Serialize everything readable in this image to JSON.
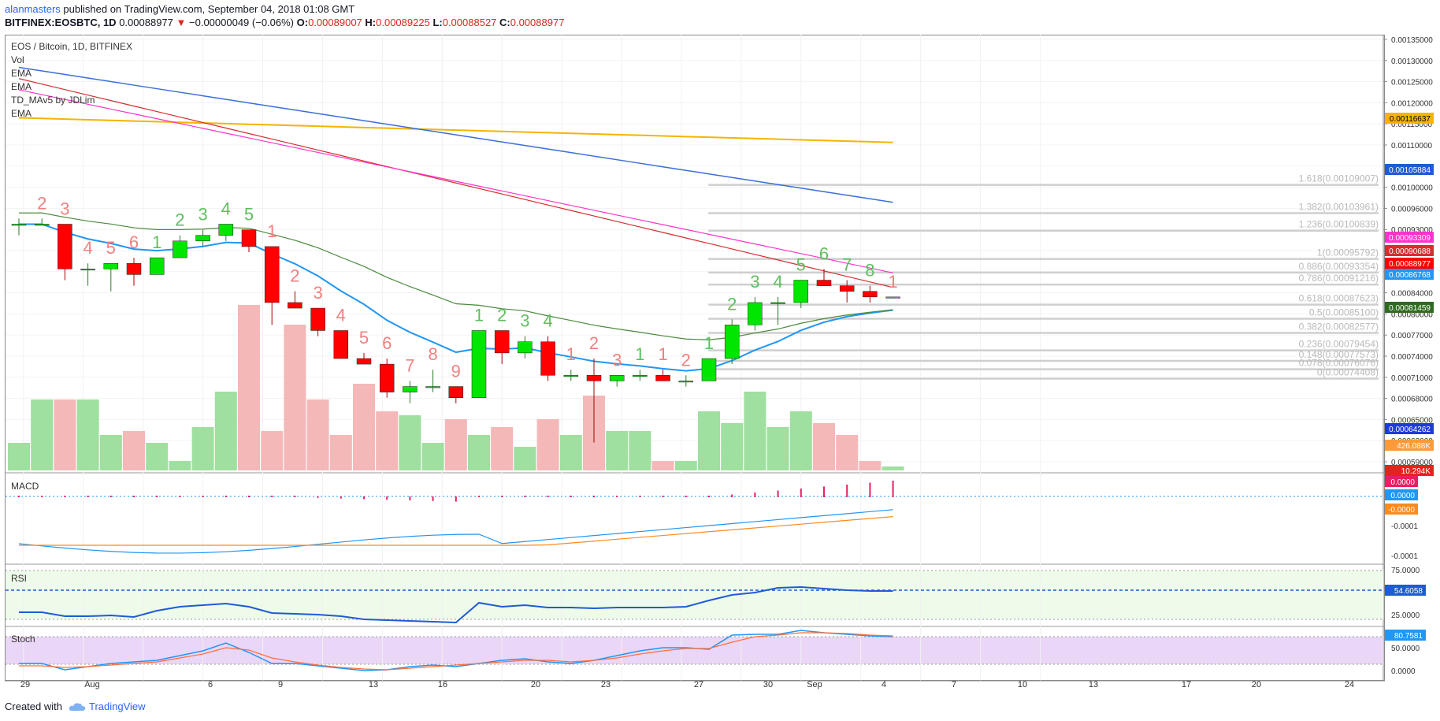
{
  "header": {
    "author": "alanmasters",
    "published": " published on TradingView.com, September 04, 2018 01:08 GMT",
    "symbol": "BITFINEX:EOSBTC, 1D",
    "last": "0.00088977",
    "change": "−0.00000049 (−0.06%)",
    "o_label": "O:",
    "o": "0.00089007",
    "h_label": "H:",
    "h": "0.00089225",
    "l_label": "L:",
    "l": "0.00088527",
    "c_label": "C:",
    "c": "0.00088977"
  },
  "legend": {
    "title": "EOS / Bitcoin, 1D, BITFINEX",
    "items": [
      "Vol",
      "EMA",
      "EMA",
      "TD_MAv5 by JDLim",
      "EMA"
    ]
  },
  "panes": {
    "macd": "MACD",
    "rsi": "RSI",
    "stoch": "Stoch"
  },
  "footer": {
    "created_with": "Created with",
    "brand": "TradingView"
  },
  "colors": {
    "up": "#00e600",
    "down": "#ff0000",
    "vol_up": "#9fdf9f",
    "vol_down": "#f4b8b8",
    "ema_blue": "#2196f3",
    "ema_red": "#d32f2f",
    "ema_magenta": "#ff33cc",
    "ema_gold": "#f5b400",
    "ema_navy": "#3b6fd8",
    "ema_green": "#4a8a3a",
    "rsi": "#1e5bd6"
  },
  "chart_data": {
    "type": "candlestick",
    "y_axis_labels": [
      "0.00135000",
      "0.00130000",
      "0.00125000",
      "0.00120000",
      "0.00115000",
      "0.00110000",
      "0.00105000",
      "0.00100000",
      "0.00096000",
      "0.00093000",
      "0.00090000",
      "0.00087000",
      "0.00084000",
      "0.00080000",
      "0.00077000",
      "0.00074000",
      "0.00071000",
      "0.00068000",
      "0.00065000",
      "0.00062000",
      "0.00059000"
    ],
    "x_axis_labels": [
      "29",
      "Aug",
      "6",
      "9",
      "13",
      "16",
      "20",
      "23",
      "27",
      "30",
      "Sep",
      "4",
      "7",
      "10",
      "13",
      "17",
      "20",
      "24"
    ],
    "candles": [
      {
        "o": 0.00102,
        "h": 0.00103,
        "l": 0.001,
        "c": 0.00102
      },
      {
        "o": 0.00102,
        "h": 0.00103,
        "l": 0.00102,
        "c": 0.00102
      },
      {
        "o": 0.00102,
        "h": 0.00102,
        "l": 0.00092,
        "c": 0.00094
      },
      {
        "o": 0.00094,
        "h": 0.00095,
        "l": 0.00091,
        "c": 0.00094
      },
      {
        "o": 0.00094,
        "h": 0.00095,
        "l": 0.0009,
        "c": 0.00095
      },
      {
        "o": 0.00095,
        "h": 0.00096,
        "l": 0.00091,
        "c": 0.00093
      },
      {
        "o": 0.00093,
        "h": 0.00096,
        "l": 0.00093,
        "c": 0.00096
      },
      {
        "o": 0.00096,
        "h": 0.001,
        "l": 0.00096,
        "c": 0.00099
      },
      {
        "o": 0.00099,
        "h": 0.00101,
        "l": 0.00098,
        "c": 0.001
      },
      {
        "o": 0.001,
        "h": 0.00102,
        "l": 0.00099,
        "c": 0.00102
      },
      {
        "o": 0.00101,
        "h": 0.00101,
        "l": 0.00097,
        "c": 0.00098
      },
      {
        "o": 0.00098,
        "h": 0.00098,
        "l": 0.00084,
        "c": 0.00088
      },
      {
        "o": 0.00088,
        "h": 0.0009,
        "l": 0.00087,
        "c": 0.00087
      },
      {
        "o": 0.00087,
        "h": 0.00087,
        "l": 0.00082,
        "c": 0.00083
      },
      {
        "o": 0.00083,
        "h": 0.00083,
        "l": 0.00078,
        "c": 0.00078
      },
      {
        "o": 0.00078,
        "h": 0.00079,
        "l": 0.00077,
        "c": 0.00077
      },
      {
        "o": 0.00077,
        "h": 0.00078,
        "l": 0.00071,
        "c": 0.00072
      },
      {
        "o": 0.00072,
        "h": 0.00074,
        "l": 0.0007,
        "c": 0.00073
      },
      {
        "o": 0.00073,
        "h": 0.00076,
        "l": 0.00072,
        "c": 0.00073
      },
      {
        "o": 0.00073,
        "h": 0.00073,
        "l": 0.0007,
        "c": 0.00071
      },
      {
        "o": 0.00071,
        "h": 0.00083,
        "l": 0.00071,
        "c": 0.00083
      },
      {
        "o": 0.00083,
        "h": 0.00083,
        "l": 0.00077,
        "c": 0.00079
      },
      {
        "o": 0.00079,
        "h": 0.00082,
        "l": 0.00078,
        "c": 0.00081
      },
      {
        "o": 0.00081,
        "h": 0.00082,
        "l": 0.00074,
        "c": 0.00075
      },
      {
        "o": 0.00075,
        "h": 0.00076,
        "l": 0.00074,
        "c": 0.00075
      },
      {
        "o": 0.00075,
        "h": 0.00078,
        "l": 0.00063,
        "c": 0.00074
      },
      {
        "o": 0.00074,
        "h": 0.00075,
        "l": 0.00073,
        "c": 0.00075
      },
      {
        "o": 0.00075,
        "h": 0.00076,
        "l": 0.00074,
        "c": 0.00075
      },
      {
        "o": 0.00075,
        "h": 0.00076,
        "l": 0.00074,
        "c": 0.00074
      },
      {
        "o": 0.00074,
        "h": 0.00075,
        "l": 0.00073,
        "c": 0.00074
      },
      {
        "o": 0.00074,
        "h": 0.00078,
        "l": 0.00074,
        "c": 0.00078
      },
      {
        "o": 0.00078,
        "h": 0.00085,
        "l": 0.00077,
        "c": 0.00084
      },
      {
        "o": 0.00084,
        "h": 0.00089,
        "l": 0.00083,
        "c": 0.00088
      },
      {
        "o": 0.00088,
        "h": 0.00089,
        "l": 0.00084,
        "c": 0.00088
      },
      {
        "o": 0.00088,
        "h": 0.00092,
        "l": 0.00087,
        "c": 0.00092
      },
      {
        "o": 0.00092,
        "h": 0.00094,
        "l": 0.00091,
        "c": 0.00091
      },
      {
        "o": 0.00091,
        "h": 0.00092,
        "l": 0.00088,
        "c": 0.0009
      },
      {
        "o": 0.0009,
        "h": 0.00091,
        "l": 0.00088,
        "c": 0.00089
      },
      {
        "o": 0.00089,
        "h": 0.00089,
        "l": 0.00089,
        "c": 0.00089
      }
    ],
    "volume": [
      0.35,
      0.9,
      0.9,
      0.9,
      0.45,
      0.5,
      0.35,
      0.12,
      0.55,
      1.0,
      2.1,
      0.5,
      1.85,
      0.9,
      0.45,
      1.1,
      0.75,
      0.7,
      0.35,
      0.65,
      0.45,
      0.55,
      0.3,
      0.65,
      0.45,
      0.95,
      0.5,
      0.5,
      0.12,
      0.12,
      0.75,
      0.6,
      1.0,
      0.55,
      0.75,
      0.6,
      0.45,
      0.12,
      0.05
    ],
    "td_labels_top": [
      {
        "i": 1,
        "t": "2",
        "g": false
      },
      {
        "i": 2,
        "t": "3",
        "g": false
      },
      {
        "i": 3,
        "t": "4",
        "g": false
      },
      {
        "i": 4,
        "t": "5",
        "g": false
      },
      {
        "i": 5,
        "t": "6",
        "g": false
      },
      {
        "i": 6,
        "t": "1",
        "g": true
      },
      {
        "i": 7,
        "t": "2",
        "g": true
      },
      {
        "i": 8,
        "t": "3",
        "g": true
      },
      {
        "i": 9,
        "t": "4",
        "g": true
      },
      {
        "i": 10,
        "t": "5",
        "g": true
      },
      {
        "i": 11,
        "t": "1",
        "g": false
      },
      {
        "i": 12,
        "t": "2",
        "g": false
      },
      {
        "i": 13,
        "t": "3",
        "g": false
      },
      {
        "i": 14,
        "t": "4",
        "g": false
      },
      {
        "i": 15,
        "t": "5",
        "g": false
      },
      {
        "i": 16,
        "t": "6",
        "g": false
      },
      {
        "i": 17,
        "t": "7",
        "g": false
      },
      {
        "i": 18,
        "t": "8",
        "g": false
      },
      {
        "i": 19,
        "t": "9",
        "g": false
      },
      {
        "i": 20,
        "t": "1",
        "g": true
      },
      {
        "i": 21,
        "t": "2",
        "g": true
      },
      {
        "i": 22,
        "t": "3",
        "g": true
      },
      {
        "i": 23,
        "t": "4",
        "g": true
      },
      {
        "i": 24,
        "t": "1",
        "g": false
      },
      {
        "i": 25,
        "t": "2",
        "g": false
      },
      {
        "i": 26,
        "t": "3",
        "g": false
      },
      {
        "i": 27,
        "t": "1",
        "g": true
      },
      {
        "i": 28,
        "t": "1",
        "g": false
      },
      {
        "i": 29,
        "t": "2",
        "g": false
      },
      {
        "i": 30,
        "t": "1",
        "g": true
      },
      {
        "i": 31,
        "t": "2",
        "g": true
      },
      {
        "i": 32,
        "t": "3",
        "g": true
      },
      {
        "i": 33,
        "t": "4",
        "g": true
      },
      {
        "i": 34,
        "t": "5",
        "g": true
      },
      {
        "i": 35,
        "t": "6",
        "g": true
      },
      {
        "i": 36,
        "t": "7",
        "g": true
      },
      {
        "i": 37,
        "t": "8",
        "g": true
      },
      {
        "i": 38,
        "t": "1",
        "g": false
      }
    ],
    "fib_levels": [
      {
        "label": "1.618(0.00109007)",
        "v": 0.00109007
      },
      {
        "label": "1.382(0.00103961)",
        "v": 0.00103961
      },
      {
        "label": "1.236(0.00100839)",
        "v": 0.00100839
      },
      {
        "label": "1(0.00095792)",
        "v": 0.00095792
      },
      {
        "label": "0.886(0.00093354)",
        "v": 0.00093354
      },
      {
        "label": "0.786(0.00091216)",
        "v": 0.00091216
      },
      {
        "label": "0.618(0.00087623)",
        "v": 0.00087623
      },
      {
        "label": "0.5(0.00085100)",
        "v": 0.000851
      },
      {
        "label": "0.382(0.00082577)",
        "v": 0.00082577
      },
      {
        "label": "0.236(0.00079454)",
        "v": 0.00079454
      },
      {
        "label": "0.148(0.00077573)",
        "v": 0.00077573
      },
      {
        "label": "0.078(0.00076076)",
        "v": 0.00076076
      },
      {
        "label": "0(0.00074408)",
        "v": 0.00074408
      }
    ],
    "price_tags": [
      {
        "text": "0.00116637",
        "bg": "#f5b400",
        "fg": "#000"
      },
      {
        "text": "0.00105884",
        "bg": "#1e5bd6",
        "fg": "#fff"
      },
      {
        "text": "0.00093309",
        "bg": "#ff33cc",
        "fg": "#fff"
      },
      {
        "text": "0.00090688",
        "bg": "#d32f2f",
        "fg": "#fff"
      },
      {
        "text": "0.00088977",
        "bg": "#ff0000",
        "fg": "#fff"
      },
      {
        "text": "0.00086768",
        "bg": "#2196f3",
        "fg": "#fff"
      },
      {
        "text": "0.00081459",
        "bg": "#2e6b1f",
        "fg": "#fff"
      },
      {
        "text": "0.00064262",
        "bg": "#1e3bd6",
        "fg": "#fff"
      },
      {
        "text": "426.088K",
        "bg": "#ff9a3c",
        "fg": "#fff"
      },
      {
        "text": "10.294K",
        "bg": "#e4231e",
        "fg": "#fff"
      }
    ],
    "macd": {
      "axis_labels": [
        "-0.0001",
        "-0.0001"
      ],
      "tags": [
        {
          "text": "0.0000",
          "bg": "#e91e63"
        },
        {
          "text": "0.0000",
          "bg": "#2196f3"
        },
        {
          "text": "-0.0000",
          "bg": "#ff8a1c"
        }
      ]
    },
    "rsi": {
      "axis_labels": [
        "75.0000",
        "25.0000"
      ],
      "tag": "54.6058"
    },
    "stoch": {
      "axis_labels": [
        "50.0000",
        "0.0000"
      ],
      "tag": "80.7581"
    }
  }
}
